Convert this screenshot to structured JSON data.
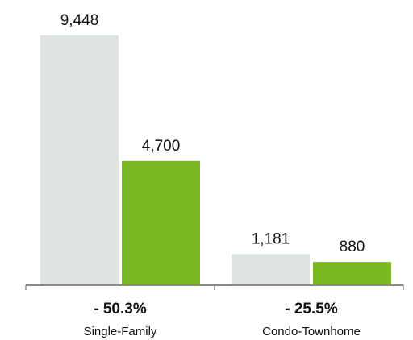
{
  "chart_data": {
    "type": "bar",
    "categories": [
      "Single-Family",
      "Condo-Townhome"
    ],
    "series": [
      {
        "values": [
          9448,
          1181
        ],
        "value_labels": [
          "9,448",
          "1,181"
        ],
        "color": "#dde2e2"
      },
      {
        "values": [
          4700,
          880
        ],
        "value_labels": [
          "4,700",
          "880"
        ],
        "color": "#7ab924"
      }
    ],
    "change_labels": [
      "- 50.3%",
      "- 25.5%"
    ],
    "ylim": [
      0,
      9448
    ],
    "grid": false,
    "legend": "none"
  }
}
